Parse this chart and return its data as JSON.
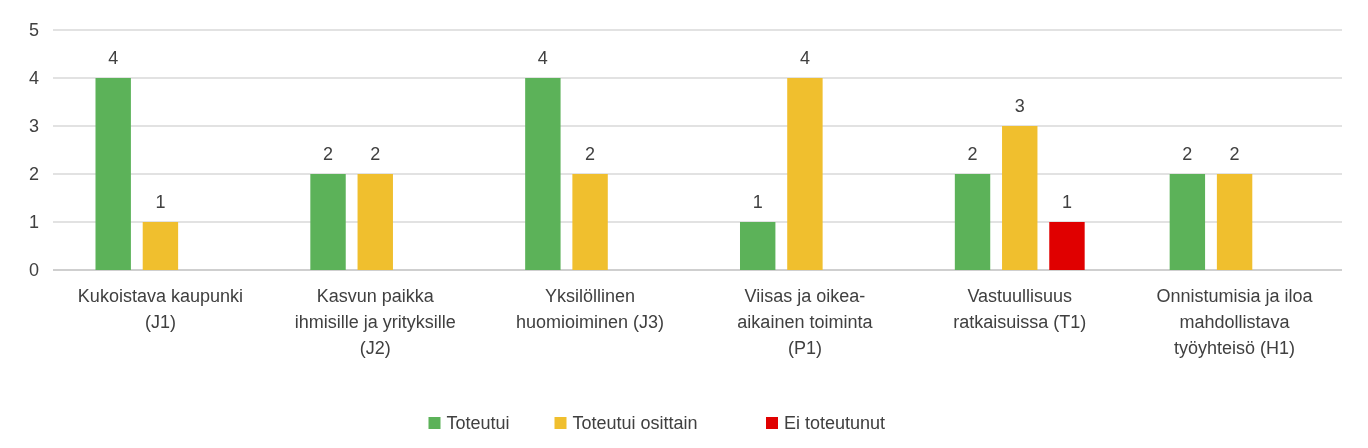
{
  "chart_data": {
    "type": "bar",
    "categories": [
      "Kukoistava kaupunki\n(J1)",
      "Kasvun paikka\nihmisille ja yrityksille\n(J2)",
      "Yksilöllinen\nhuomioiminen (J3)",
      "Viisas ja oikea-\naikainen toiminta\n(P1)",
      "Vastuullisuus\nratkaisuissa (T1)",
      "Onnistumisia ja iloa\nmahdollistava\ntyöyhteisö (H1)"
    ],
    "series": [
      {
        "name": "Toteutui",
        "color": "#5cb259",
        "values": [
          4,
          2,
          4,
          1,
          2,
          2
        ]
      },
      {
        "name": "Toteutui osittain",
        "color": "#f0bf2e",
        "values": [
          1,
          2,
          2,
          4,
          3,
          2
        ]
      },
      {
        "name": "Ei toteutunut",
        "color": "#e00000",
        "values": [
          null,
          null,
          null,
          null,
          1,
          null
        ]
      }
    ],
    "ylim": [
      0,
      5
    ],
    "yticks": [
      0,
      1,
      2,
      3,
      4,
      5
    ],
    "grid": "y",
    "data_labels": true,
    "legend": "bottom"
  }
}
